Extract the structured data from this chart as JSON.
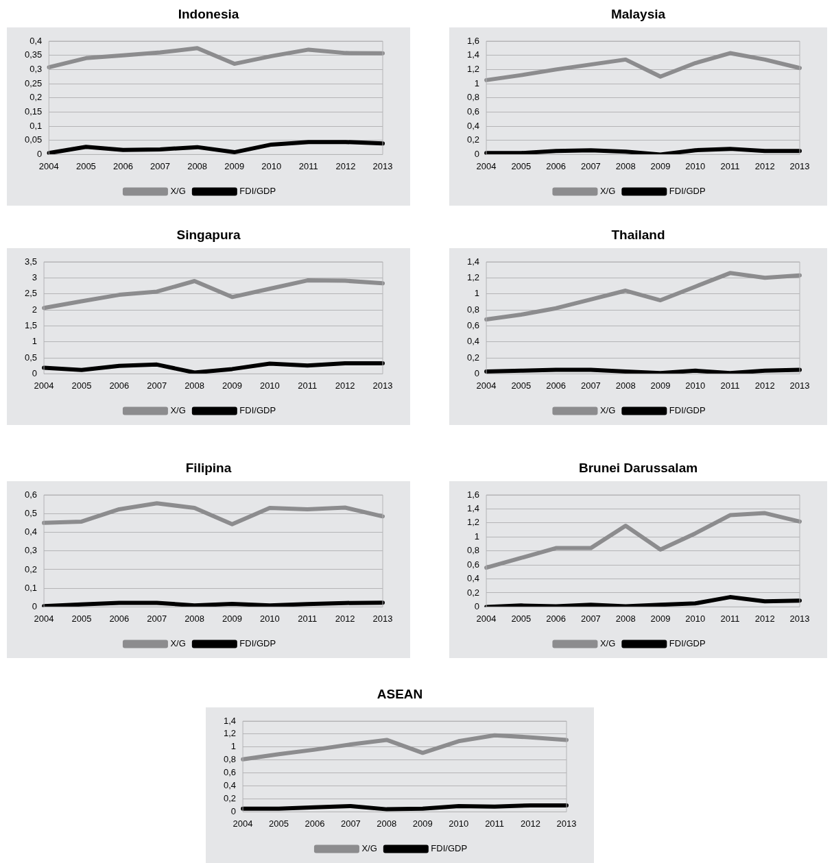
{
  "chart_data": [
    {
      "type": "line",
      "title": "Indonesia",
      "categories": [
        "2004",
        "2005",
        "2006",
        "2007",
        "2008",
        "2009",
        "2010",
        "2011",
        "2012",
        "2013"
      ],
      "ylim": [
        0,
        0.4
      ],
      "yticks": [
        0,
        {
          "value": 0.05,
          "label": "0,05"
        },
        {
          "value": 0.1,
          "label": "0,1"
        },
        {
          "value": 0.15,
          "label": "0,15"
        },
        {
          "value": 0.2,
          "label": "0,2"
        },
        {
          "value": 0.25,
          "label": "0,25"
        },
        {
          "value": 0.3,
          "label": "0,3"
        },
        {
          "value": 0.35,
          "label": "0,35"
        },
        {
          "value": 0.4,
          "label": "0,4"
        }
      ],
      "grid": "y",
      "legend": "bottom",
      "marker": "none",
      "series": [
        {
          "name": "X/G",
          "color": "#8c8c8e",
          "values": [
            0.308,
            0.34,
            0.35,
            0.36,
            0.375,
            0.32,
            0.347,
            0.37,
            0.358,
            0.357
          ]
        },
        {
          "name": "FDI/GDP",
          "color": "#000000",
          "values": [
            0.005,
            0.027,
            0.016,
            0.018,
            0.026,
            0.008,
            0.035,
            0.044,
            0.044,
            0.039
          ]
        }
      ]
    },
    {
      "type": "line",
      "title": "Malaysia",
      "categories": [
        "2004",
        "2005",
        "2006",
        "2007",
        "2008",
        "2009",
        "2010",
        "2011",
        "2012",
        "2013"
      ],
      "ylim": [
        0,
        1.6
      ],
      "yticks": [
        0,
        {
          "value": 0.2,
          "label": "0,2"
        },
        {
          "value": 0.4,
          "label": "0,4"
        },
        {
          "value": 0.6,
          "label": "0,6"
        },
        {
          "value": 0.8,
          "label": "0,8"
        },
        1,
        {
          "value": 1.2,
          "label": "1,2"
        },
        {
          "value": 1.4,
          "label": "1,4"
        },
        {
          "value": 1.6,
          "label": "1,6"
        }
      ],
      "grid": "y",
      "legend": "bottom",
      "marker": "none",
      "series": [
        {
          "name": "X/G",
          "color": "#8c8c8e",
          "values": [
            1.05,
            1.12,
            1.2,
            1.27,
            1.34,
            1.1,
            1.29,
            1.43,
            1.34,
            1.22
          ]
        },
        {
          "name": "FDI/GDP",
          "color": "#000000",
          "values": [
            0.02,
            0.02,
            0.05,
            0.06,
            0.04,
            0,
            0.06,
            0.08,
            0.05,
            0.05
          ]
        }
      ]
    },
    {
      "type": "line",
      "title": "Singapura",
      "categories": [
        "2004",
        "2005",
        "2006",
        "2007",
        "2008",
        "2009",
        "2010",
        "2011",
        "2012",
        "2013"
      ],
      "ylim": [
        0,
        3.5
      ],
      "yticks": [
        0,
        {
          "value": 0.5,
          "label": "0,5"
        },
        1,
        {
          "value": 1.5,
          "label": "1,5"
        },
        2,
        {
          "value": 2.5,
          "label": "2,5"
        },
        3,
        {
          "value": 3.5,
          "label": "3,5"
        }
      ],
      "grid": "y",
      "legend": "bottom",
      "marker": "none",
      "series": [
        {
          "name": "X/G",
          "color": "#8c8c8e",
          "values": [
            2.06,
            2.27,
            2.47,
            2.57,
            2.9,
            2.4,
            2.66,
            2.92,
            2.91,
            2.83
          ]
        },
        {
          "name": "FDI/GDP",
          "color": "#000000",
          "values": [
            0.19,
            0.12,
            0.25,
            0.29,
            0.04,
            0.15,
            0.32,
            0.26,
            0.33,
            0.33
          ]
        }
      ]
    },
    {
      "type": "line",
      "title": "Thailand",
      "categories": [
        "2004",
        "2005",
        "2006",
        "2007",
        "2008",
        "2009",
        "2010",
        "2011",
        "2012",
        "2013"
      ],
      "ylim": [
        0,
        1.4
      ],
      "yticks": [
        0,
        {
          "value": 0.2,
          "label": "0,2"
        },
        {
          "value": 0.4,
          "label": "0,4"
        },
        {
          "value": 0.6,
          "label": "0,6"
        },
        {
          "value": 0.8,
          "label": "0,8"
        },
        1,
        {
          "value": 1.2,
          "label": "1,2"
        },
        {
          "value": 1.4,
          "label": "1,4"
        }
      ],
      "grid": "y",
      "legend": "bottom",
      "marker": "none",
      "series": [
        {
          "name": "X/G",
          "color": "#8c8c8e",
          "values": [
            0.68,
            0.74,
            0.82,
            0.93,
            1.04,
            0.92,
            1.09,
            1.26,
            1.2,
            1.23
          ]
        },
        {
          "name": "FDI/GDP",
          "color": "#000000",
          "values": [
            0.03,
            0.04,
            0.05,
            0.05,
            0.03,
            0.01,
            0.04,
            0.01,
            0.04,
            0.05
          ]
        }
      ]
    },
    {
      "type": "line",
      "title": "Filipina",
      "categories": [
        "2004",
        "2005",
        "2006",
        "2007",
        "2008",
        "2009",
        "2010",
        "2011",
        "2012",
        "2013"
      ],
      "ylim": [
        0,
        0.6
      ],
      "yticks": [
        0,
        {
          "value": 0.1,
          "label": "0,1"
        },
        {
          "value": 0.2,
          "label": "0,2"
        },
        {
          "value": 0.3,
          "label": "0,3"
        },
        {
          "value": 0.4,
          "label": "0,4"
        },
        {
          "value": 0.5,
          "label": "0,5"
        },
        {
          "value": 0.6,
          "label": "0,6"
        }
      ],
      "grid": "y",
      "legend": "bottom",
      "marker": "none",
      "series": [
        {
          "name": "X/G",
          "color": "#8c8c8e",
          "values": [
            0.45,
            0.457,
            0.523,
            0.555,
            0.53,
            0.443,
            0.53,
            0.523,
            0.532,
            0.485
          ]
        },
        {
          "name": "FDI/GDP",
          "color": "#000000",
          "values": [
            0.004,
            0.013,
            0.022,
            0.022,
            0.008,
            0.016,
            0.008,
            0.015,
            0.021,
            0.023
          ]
        }
      ]
    },
    {
      "type": "line",
      "title": "Brunei Darussalam",
      "categories": [
        "2004",
        "2005",
        "2006",
        "2007",
        "2008",
        "2009",
        "2010",
        "2011",
        "2012",
        "2013"
      ],
      "ylim": [
        0,
        1.6
      ],
      "yticks": [
        0,
        {
          "value": 0.2,
          "label": "0,2"
        },
        {
          "value": 0.4,
          "label": "0,4"
        },
        {
          "value": 0.6,
          "label": "0,6"
        },
        {
          "value": 0.8,
          "label": "0,8"
        },
        1,
        {
          "value": 1.2,
          "label": "1,2"
        },
        {
          "value": 1.4,
          "label": "1,4"
        },
        {
          "value": 1.6,
          "label": "1,6"
        }
      ],
      "grid": "y",
      "legend": "bottom",
      "marker": "none",
      "series": [
        {
          "name": "X/G",
          "color": "#8c8c8e",
          "values": [
            0.56,
            0.7,
            0.84,
            0.84,
            1.16,
            0.82,
            1.05,
            1.31,
            1.34,
            1.22
          ]
        },
        {
          "name": "FDI/GDP",
          "color": "#000000",
          "values": [
            0,
            0.02,
            0.01,
            0.03,
            0.01,
            0.03,
            0.05,
            0.14,
            0.08,
            0.09
          ]
        }
      ]
    },
    {
      "type": "line",
      "title": "ASEAN",
      "categories": [
        "2004",
        "2005",
        "2006",
        "2007",
        "2008",
        "2009",
        "2010",
        "2011",
        "2012",
        "2013"
      ],
      "ylim": [
        0,
        1.4
      ],
      "yticks": [
        0,
        {
          "value": 0.2,
          "label": "0,2"
        },
        {
          "value": 0.4,
          "label": "0,4"
        },
        {
          "value": 0.6,
          "label": "0,6"
        },
        {
          "value": 0.8,
          "label": "0,8"
        },
        1,
        {
          "value": 1.2,
          "label": "1,2"
        },
        {
          "value": 1.4,
          "label": "1,4"
        }
      ],
      "grid": "y",
      "legend": "bottom",
      "marker": "none",
      "series": [
        {
          "name": "X/G",
          "color": "#8c8c8e",
          "values": [
            0.81,
            0.89,
            0.96,
            1.04,
            1.11,
            0.91,
            1.09,
            1.18,
            1.15,
            1.11
          ]
        },
        {
          "name": "FDI/GDP",
          "color": "#000000",
          "values": [
            0.05,
            0.05,
            0.07,
            0.09,
            0.04,
            0.05,
            0.09,
            0.08,
            0.1,
            0.1
          ]
        }
      ]
    }
  ]
}
